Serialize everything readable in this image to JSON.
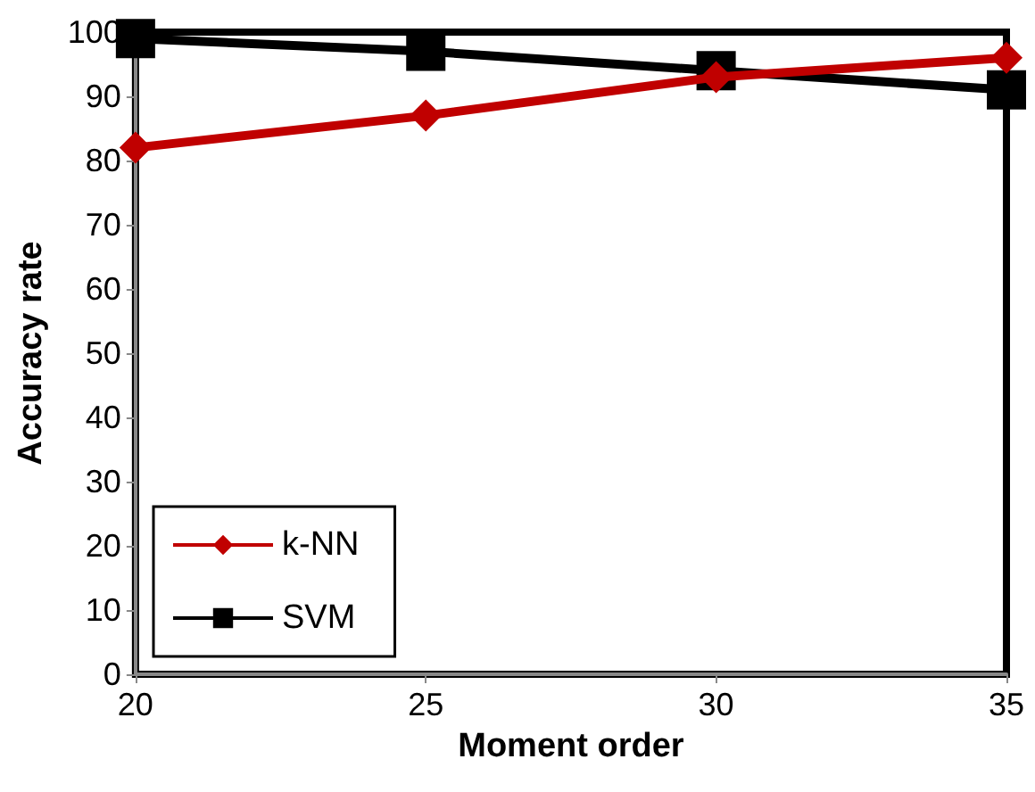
{
  "chart_data": {
    "type": "line",
    "xlabel": "Moment order",
    "ylabel": "Accuracy rate",
    "x": [
      20,
      25,
      30,
      35
    ],
    "series": [
      {
        "name": "k-NN",
        "color": "#c00000",
        "marker": "diamond",
        "values": [
          82,
          87,
          93,
          96
        ]
      },
      {
        "name": "SVM",
        "color": "#000000",
        "marker": "square",
        "values": [
          99,
          97,
          94,
          91
        ]
      }
    ],
    "xlim": [
      20,
      35
    ],
    "xticks": [
      20,
      25,
      30,
      35
    ],
    "ylim": [
      0,
      100
    ],
    "yticks": [
      0,
      10,
      20,
      30,
      40,
      50,
      60,
      70,
      80,
      90,
      100
    ],
    "grid": false,
    "legend": "bottom left",
    "line_style": "solid"
  }
}
